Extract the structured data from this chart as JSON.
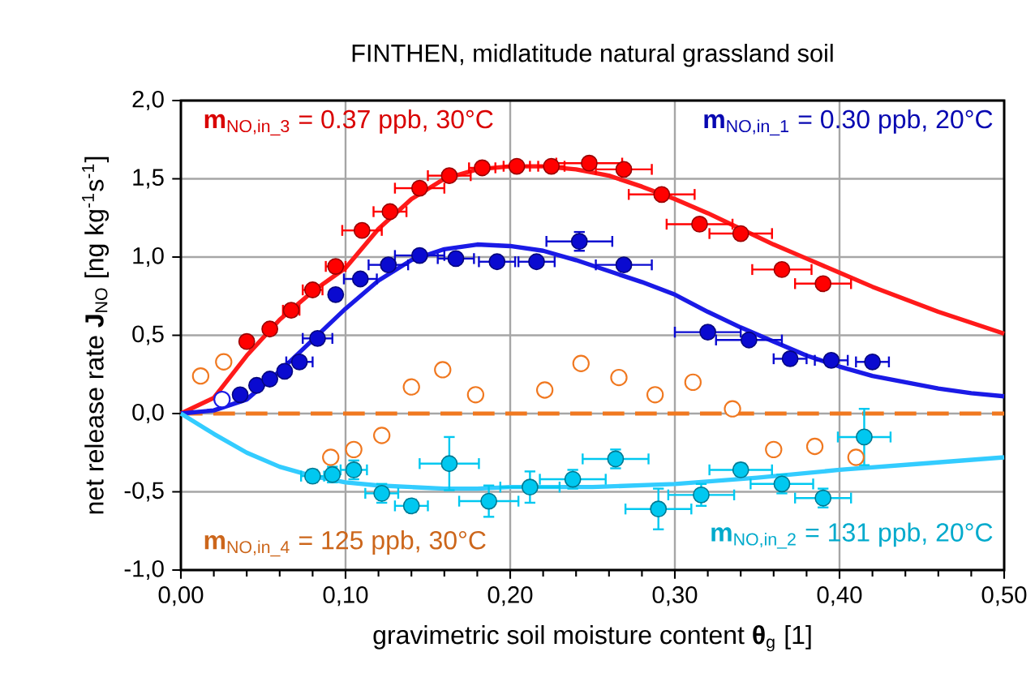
{
  "chart_data": {
    "type": "scatter",
    "title": "FINTHEN, midlatitude natural grassland soil",
    "xlabel": "gravimetric soil moisture content **θ**$_{g}$   [1]",
    "ylabel": "net release rate  **J**$_{NO}$  [ng kg$^{-1}$s$^{-1}$]",
    "annotations": [
      "**m**$_{NO,in_3}$ = 0.37 ppb, 30°C",
      "**m**$_{NO,in_1}$ = 0.30 ppb, 20°C",
      "**m**$_{NO,in_4}$ = 125 ppb, 30°C",
      "**m**$_{NO,in_2}$ = 131 ppb, 20°C"
    ],
    "xlim": [
      0,
      0.5
    ],
    "ylim": [
      -1.0,
      2.0
    ],
    "xticks": [
      {
        "value": 0,
        "label": "0,00"
      },
      {
        "value": 0.1,
        "label": "0,10"
      },
      {
        "value": 0.2,
        "label": "0,20"
      },
      {
        "value": 0.3,
        "label": "0,30"
      },
      {
        "value": 0.4,
        "label": "0,40"
      },
      {
        "value": 0.5,
        "label": "0,50"
      }
    ],
    "yticks": [
      {
        "value": -1.0,
        "label": "-1,0"
      },
      {
        "value": -0.5,
        "label": "-0,5"
      },
      {
        "value": 0,
        "label": "0,0"
      },
      {
        "value": 0.5,
        "label": "0,5"
      },
      {
        "value": 1.0,
        "label": "1,0"
      },
      {
        "value": 1.5,
        "label": "1,5"
      },
      {
        "value": 2.0,
        "label": "2,0"
      }
    ],
    "grid": true,
    "ref_lines": [
      {
        "axis": "y",
        "value": 0,
        "color": "#f07820",
        "line_style": "dashed"
      }
    ],
    "series": [
      {
        "type": "line",
        "marker": "none",
        "color": "#ff1a1a",
        "x": [
          0,
          0.02,
          0.04,
          0.06,
          0.08,
          0.1,
          0.12,
          0.14,
          0.16,
          0.18,
          0.2,
          0.22,
          0.24,
          0.26,
          0.28,
          0.3,
          0.32,
          0.34,
          0.36,
          0.38,
          0.4,
          0.42,
          0.44,
          0.46,
          0.48,
          0.5
        ],
        "values": [
          0,
          0.1,
          0.37,
          0.6,
          0.78,
          0.93,
          1.18,
          1.37,
          1.5,
          1.56,
          1.58,
          1.58,
          1.56,
          1.52,
          1.45,
          1.37,
          1.28,
          1.18,
          1.08,
          0.99,
          0.9,
          0.81,
          0.73,
          0.65,
          0.58,
          0.51
        ]
      },
      {
        "type": "line",
        "marker": "none",
        "color": "#1a1ae6",
        "x": [
          0,
          0.02,
          0.04,
          0.06,
          0.08,
          0.1,
          0.12,
          0.14,
          0.16,
          0.18,
          0.2,
          0.22,
          0.24,
          0.26,
          0.28,
          0.3,
          0.32,
          0.34,
          0.36,
          0.38,
          0.4,
          0.42,
          0.44,
          0.46,
          0.48,
          0.5
        ],
        "values": [
          0,
          0.02,
          0.09,
          0.27,
          0.47,
          0.67,
          0.85,
          0.98,
          1.05,
          1.08,
          1.07,
          1.04,
          0.98,
          0.91,
          0.84,
          0.76,
          0.65,
          0.55,
          0.46,
          0.37,
          0.3,
          0.24,
          0.2,
          0.16,
          0.13,
          0.11
        ]
      },
      {
        "type": "line",
        "marker": "none",
        "color": "#33ccff",
        "x": [
          0,
          0.02,
          0.04,
          0.06,
          0.08,
          0.1,
          0.12,
          0.14,
          0.16,
          0.18,
          0.2,
          0.25,
          0.3,
          0.35,
          0.4,
          0.45,
          0.5
        ],
        "values": [
          0,
          -0.13,
          -0.25,
          -0.34,
          -0.4,
          -0.44,
          -0.46,
          -0.47,
          -0.48,
          -0.48,
          -0.47,
          -0.47,
          -0.45,
          -0.41,
          -0.36,
          -0.32,
          -0.28
        ]
      },
      {
        "marker": "circle",
        "color": "#f07820",
        "x": [
          0.012,
          0.026,
          0.091,
          0.105,
          0.122,
          0.14,
          0.159,
          0.179,
          0.221,
          0.243,
          0.266,
          0.288,
          0.311,
          0.335,
          0.36,
          0.385,
          0.41
        ],
        "values": [
          0.24,
          0.33,
          -0.28,
          -0.23,
          -0.14,
          0.17,
          0.28,
          0.12,
          0.15,
          0.32,
          0.23,
          0.12,
          0.2,
          0.03,
          -0.23,
          -0.21,
          -0.28
        ]
      },
      {
        "marker": "circle",
        "color": "#1a1ae6",
        "x": [
          0.025
        ],
        "values": [
          0.09
        ]
      },
      {
        "marker": "circle",
        "color": "#ff0000",
        "x": [
          0.04,
          0.054,
          0.067,
          0.08,
          0.094,
          0.11,
          0.127,
          0.145,
          0.163,
          0.183,
          0.204,
          0.225,
          0.248,
          0.269,
          0.292,
          0.315,
          0.34,
          0.365,
          0.39
        ],
        "values": [
          0.46,
          0.54,
          0.66,
          0.79,
          0.94,
          1.17,
          1.29,
          1.44,
          1.52,
          1.57,
          1.58,
          1.58,
          1.6,
          1.56,
          1.4,
          1.21,
          1.15,
          0.92,
          0.83
        ],
        "xerrors": [
          null,
          null,
          0.005,
          0.006,
          0.006,
          0.012,
          0.01,
          0.015,
          0.013,
          0.008,
          0.008,
          0.008,
          0.02,
          0.017,
          0.02,
          0.02,
          0.019,
          0.018,
          0.017
        ]
      },
      {
        "marker": "circle",
        "color": "#0a0ad0",
        "x": [
          0.036,
          0.046,
          0.054,
          0.063,
          0.072,
          0.083,
          0.094,
          0.109,
          0.126,
          0.145,
          0.167,
          0.192,
          0.216,
          0.242,
          0.269,
          0.32,
          0.345,
          0.37,
          0.395,
          0.42
        ],
        "values": [
          0.12,
          0.18,
          0.22,
          0.27,
          0.33,
          0.48,
          0.76,
          0.86,
          0.95,
          1.01,
          0.99,
          0.97,
          0.97,
          1.1,
          0.95,
          0.52,
          0.47,
          0.35,
          0.34,
          0.33
        ],
        "xerrors": [
          null,
          null,
          null,
          null,
          0.008,
          0.009,
          null,
          0.01,
          0.012,
          0.015,
          0.011,
          0.011,
          0.011,
          0.02,
          0.017,
          0.02,
          0.02,
          0.01,
          0.01,
          0.01
        ],
        "errors": [
          null,
          null,
          null,
          null,
          null,
          null,
          null,
          null,
          null,
          null,
          null,
          null,
          null,
          0.06,
          null,
          null,
          null,
          null,
          null,
          null
        ]
      },
      {
        "marker": "circle",
        "color": "#00c8f0",
        "x": [
          0.08,
          0.092,
          0.105,
          0.122,
          0.14,
          0.163,
          0.187,
          0.212,
          0.238,
          0.264,
          0.29,
          0.316,
          0.34,
          0.365,
          0.39,
          0.415
        ],
        "values": [
          -0.4,
          -0.39,
          -0.36,
          -0.51,
          -0.59,
          -0.32,
          -0.56,
          -0.47,
          -0.42,
          -0.29,
          -0.61,
          -0.52,
          -0.36,
          -0.45,
          -0.54,
          -0.15
        ],
        "xerrors": [
          0.007,
          null,
          0.008,
          0.01,
          0.01,
          0.018,
          0.018,
          0.018,
          0.02,
          0.02,
          0.02,
          0.02,
          0.019,
          0.019,
          0.017,
          0.016
        ],
        "errors": [
          0.04,
          0.05,
          0.06,
          0.06,
          0.04,
          0.17,
          0.1,
          0.1,
          0.06,
          0.06,
          0.13,
          0.07,
          0.04,
          0.06,
          0.06,
          0.18
        ]
      }
    ]
  }
}
